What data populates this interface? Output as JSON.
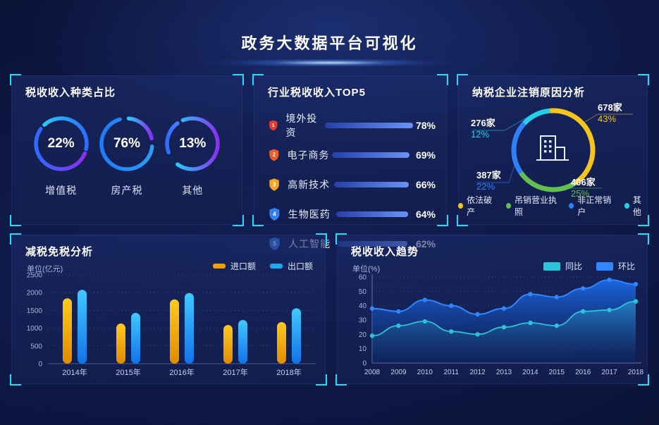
{
  "header": {
    "title": "政务大数据平台可视化"
  },
  "chart_data": [
    {
      "type": "pie",
      "variant": "donut-trio",
      "title": "税收收入种类占比",
      "unit": "%",
      "items": [
        {
          "label": "增值税",
          "value": 22
        },
        {
          "label": "房产税",
          "value": 76
        },
        {
          "label": "其他",
          "value": 13
        }
      ]
    },
    {
      "type": "bar",
      "variant": "horizontal-rank",
      "title": "行业税收收入TOP5",
      "unit": "%",
      "xlim": [
        0,
        100
      ],
      "categories": [
        "境外投资",
        "电子商务",
        "高新技术",
        "生物医药",
        "人工智能"
      ],
      "values": [
        78,
        69,
        66,
        64,
        62
      ],
      "ranks": [
        "1",
        "2",
        "3",
        "4",
        "5"
      ],
      "rank_colors": [
        "#e63a2e",
        "#f05a28",
        "#f6a623",
        "#2f80f7",
        "#2f80f7"
      ],
      "bar_color": "#5b86f5"
    },
    {
      "type": "pie",
      "variant": "donut",
      "title": "纳税企业注销原因分析",
      "center_icon": "building-icon",
      "slices": [
        {
          "label": "依法破产",
          "count": "678家",
          "percent": 43,
          "color": "#f5c51c"
        },
        {
          "label": "吊销营业执照",
          "count": "406家",
          "percent": 25,
          "color": "#62bf50"
        },
        {
          "label": "非正常销户",
          "count": "387家",
          "percent": 22,
          "color": "#2f80f7"
        },
        {
          "label": "其他",
          "count": "276家",
          "percent": 12,
          "color": "#23d0e8"
        }
      ]
    },
    {
      "type": "bar",
      "title": "减税免税分析",
      "ylabel": "单位(亿元)",
      "ylim": [
        0,
        2500
      ],
      "yticks": [
        0,
        500,
        1000,
        1500,
        2000,
        2500
      ],
      "grid": "dotted",
      "legend_position": "top-right",
      "categories": [
        "2014年",
        "2015年",
        "2016年",
        "2017年",
        "2018年"
      ],
      "series": [
        {
          "name": "进口额",
          "color": "#f0a202",
          "values": [
            1840,
            1130,
            1810,
            1090,
            1170
          ]
        },
        {
          "name": "出口额",
          "color": "#1ea9f3",
          "values": [
            2080,
            1430,
            1990,
            1230,
            1560
          ]
        }
      ]
    },
    {
      "type": "area",
      "title": "税收收入趋势",
      "ylabel": "单位(%)",
      "ylim": [
        0,
        60
      ],
      "yticks": [
        0,
        10,
        20,
        30,
        40,
        50,
        60
      ],
      "grid": "dotted",
      "legend_position": "top-right",
      "x": [
        "2008",
        "2009",
        "2010",
        "2011",
        "2012",
        "2013",
        "2014",
        "2015",
        "2016",
        "2017",
        "2018"
      ],
      "series": [
        {
          "name": "同比",
          "color": "#2cc3d8",
          "values": [
            19,
            26,
            29,
            22,
            20,
            25,
            28,
            26,
            36,
            37,
            43
          ]
        },
        {
          "name": "环比",
          "color": "#2f86ff",
          "values": [
            38,
            36,
            44,
            40,
            34,
            38,
            48,
            46,
            52,
            58,
            55
          ]
        }
      ]
    }
  ]
}
